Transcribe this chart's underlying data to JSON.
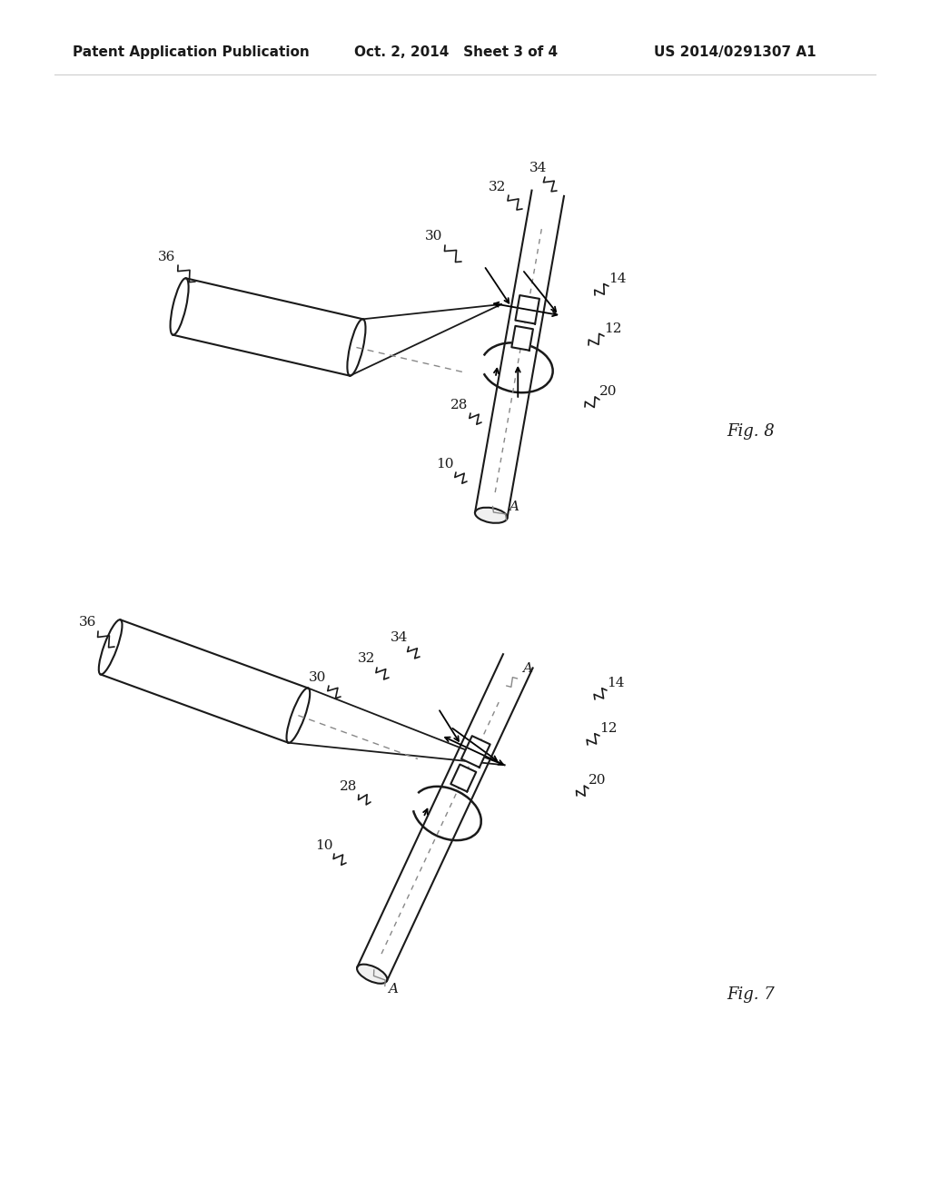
{
  "background_color": "#ffffff",
  "header_left": "Patent Application Publication",
  "header_mid": "Oct. 2, 2014   Sheet 3 of 4",
  "header_right": "US 2014/0291307 A1",
  "fig8_label": "Fig. 8",
  "fig7_label": "Fig. 7",
  "line_color": "#1a1a1a",
  "dashed_color": "#888888"
}
